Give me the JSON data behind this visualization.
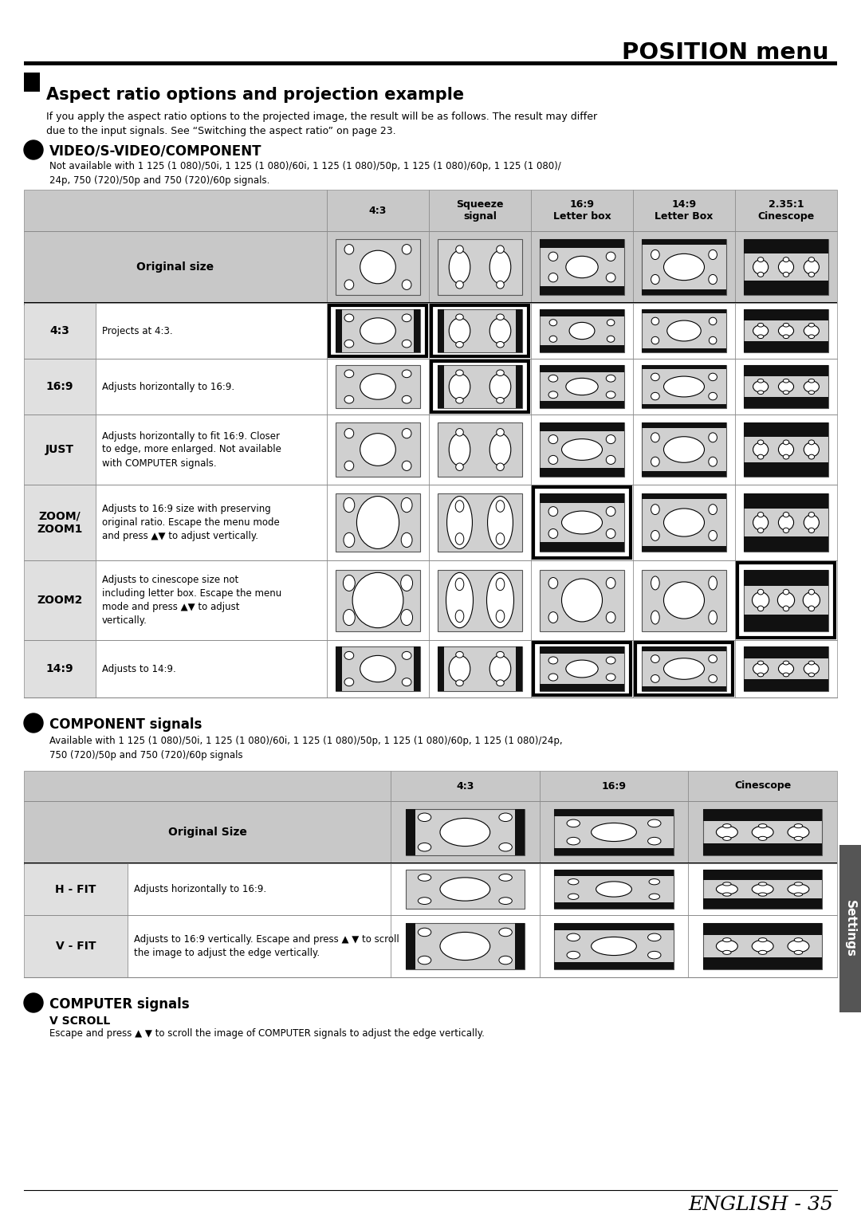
{
  "title": "POSITION menu",
  "section1_bullet": "Aspect ratio options and projection example",
  "section1_desc": "If you apply the aspect ratio options to the projected image, the result will be as follows. The result may differ\ndue to the input signals. See “Switching the aspect ratio” on page 23.",
  "subsection1_title": "VIDEO/S-VIDEO/COMPONENT",
  "subsection1_desc": "Not available with 1 125 (1 080)/50i, 1 125 (1 080)/60i, 1 125 (1 080)/50p, 1 125 (1 080)/60p, 1 125 (1 080)/\n24p, 750 (720)/50p and 750 (720)/60p signals.",
  "table1_cols": [
    "4:3",
    "Squeeze\nsignal",
    "16:9\nLetter box",
    "14:9\nLetter Box",
    "2.35:1\nCinescope"
  ],
  "table1_rows": [
    {
      "label": "Original size",
      "desc": "",
      "highlighted": []
    },
    {
      "label": "4:3",
      "desc": "Projects at 4:3.",
      "highlighted": [
        0,
        1
      ]
    },
    {
      "label": "16:9",
      "desc": "Adjusts horizontally to 16:9.",
      "highlighted": [
        1
      ]
    },
    {
      "label": "JUST",
      "desc": "Adjusts horizontally to fit 16:9. Closer\nto edge, more enlarged. Not available\nwith COMPUTER signals.",
      "highlighted": []
    },
    {
      "label": "ZOOM/\nZOOM1",
      "desc": "Adjusts to 16:9 size with preserving\noriginal ratio. Escape the menu mode\nand press ▲▼ to adjust vertically.",
      "highlighted": [
        2
      ]
    },
    {
      "label": "ZOOM2",
      "desc": "Adjusts to cinescope size not\nincluding letter box. Escape the menu\nmode and press ▲▼ to adjust\nvertically.",
      "highlighted": [
        4
      ]
    },
    {
      "label": "14:9",
      "desc": "Adjusts to 14:9.",
      "highlighted": [
        2,
        3
      ]
    }
  ],
  "subsection2_title": "COMPONENT signals",
  "subsection2_desc": "Available with 1 125 (1 080)/50i, 1 125 (1 080)/60i, 1 125 (1 080)/50p, 1 125 (1 080)/60p, 1 125 (1 080)/24p,\n750 (720)/50p and 750 (720)/60p signals",
  "table2_cols": [
    "4:3",
    "16:9",
    "Cinescope"
  ],
  "table2_rows": [
    {
      "label": "Original Size",
      "desc": ""
    },
    {
      "label": "H - FIT",
      "desc": "Adjusts horizontally to 16:9."
    },
    {
      "label": "V - FIT",
      "desc": "Adjusts to 16:9 vertically. Escape and press ▲ ▼ to scroll\nthe image to adjust the edge vertically."
    }
  ],
  "subsection3_title": "COMPUTER signals",
  "subsection3_sub": "V SCROLL",
  "subsection3_desc": "Escape and press ▲ ▼ to scroll the image of COMPUTER signals to adjust the edge vertically.",
  "footer": "ENGLISH - 35",
  "settings_tab": "Settings"
}
